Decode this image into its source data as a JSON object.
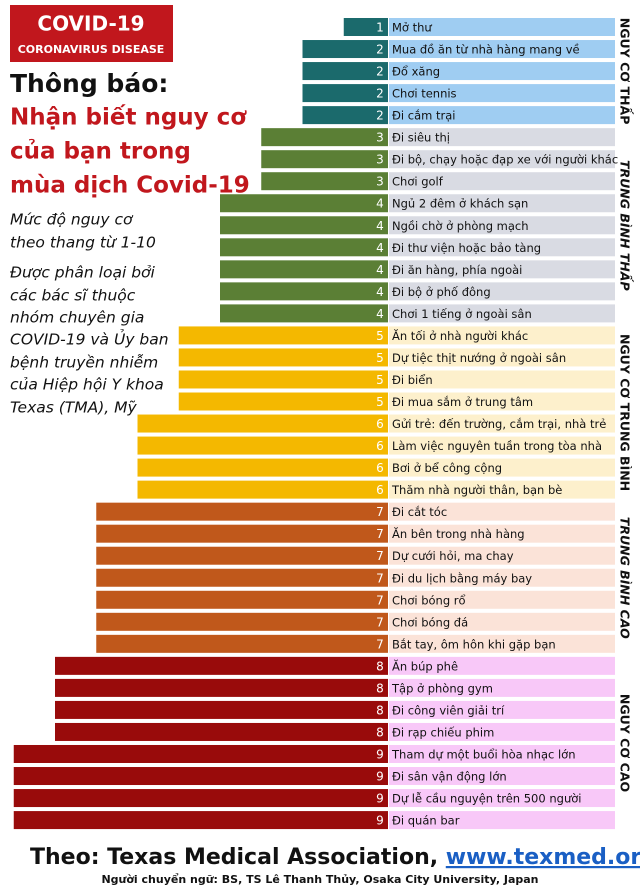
{
  "chart_data": {
    "type": "bar",
    "badge": [
      "COVID-19",
      "CORONAVIRUS DISEASE"
    ],
    "title": "Thông báo:",
    "subtitle": [
      "Nhận biết nguy cơ",
      "của bạn trong",
      "mùa dịch Covid-19"
    ],
    "annotations": [
      "Mức độ nguy cơ",
      "theo thang từ 1-10",
      "Được phân loại bởi",
      "các bác sĩ thuộc",
      "nhóm chuyên gia",
      "COVID-19 và Ủy ban",
      "bệnh truyền nhiễm",
      "của Hiệp hội Y khoa",
      "Texas (TMA), Mỹ"
    ],
    "series": [
      {
        "name": "NGUY CƠ THẤP",
        "color": "#1b6a6c",
        "background": "#9fcdf2",
        "categories": [
          "Mở thư",
          "Mua đồ ăn từ nhà hàng mang về",
          "Đổ xăng",
          "Chơi tennis",
          "Đi cắm trại"
        ],
        "values": [
          1,
          2,
          2,
          2,
          2
        ]
      },
      {
        "name": "TRUNG BÌNH THẤP",
        "color": "#5b7f35",
        "background": "#d9dbe3",
        "categories": [
          "Đi siêu thị",
          "Đi bộ, chạy hoặc đạp xe với người khác",
          "Chơi golf",
          "Ngủ 2 đêm ở khách sạn",
          "Ngồi chờ ở phòng mạch",
          "Đi thư viện hoặc bảo tàng",
          "Đi ăn hàng, phía ngoài",
          "Đi bộ ở phố đông",
          "Chơi 1 tiếng ở ngoài sân"
        ],
        "values": [
          3,
          3,
          3,
          4,
          4,
          4,
          4,
          4,
          4
        ]
      },
      {
        "name": "NGUY CƠ TRUNG BÌNH",
        "color": "#f4b800",
        "background": "#fdf0cc",
        "categories": [
          "Ăn tối ở nhà người khác",
          "Dự tiệc thịt nướng ở ngoài sân",
          "Đi biển",
          "Đi mua sắm ở trung tâm",
          "Gửi trẻ: đến trường, cắm trại, nhà trẻ",
          "Làm việc nguyên tuần trong tòa nhà",
          "Bơi ở bể công cộng",
          "Thăm nhà người thân, bạn bè"
        ],
        "values": [
          5,
          5,
          5,
          5,
          6,
          6,
          6,
          6
        ]
      },
      {
        "name": "TRUNG BÌNH CAO",
        "color": "#c0581b",
        "background": "#fbe3d8",
        "categories": [
          "Đi cắt tóc",
          "Ăn bên trong nhà hàng",
          "Dự cưới hỏi, ma chay",
          "Đi du lịch bằng máy bay",
          "Chơi bóng rổ",
          "Chơi bóng đá",
          "Bắt tay, ôm hôn khi gặp bạn"
        ],
        "values": [
          7,
          7,
          7,
          7,
          7,
          7,
          7
        ]
      },
      {
        "name": "NGUY CƠ CAO",
        "color": "#990b0b",
        "background": "#f8c8f8",
        "categories": [
          "Ăn búp phê",
          "Tập ở phòng gym",
          "Đi công viên giải trí",
          "Đi rạp chiếu phim",
          "Tham dự một buổi hòa nhạc lớn",
          "Đi sân vận động lớn",
          "Dự lễ cầu nguyện trên 500 người",
          "Đi quán bar"
        ],
        "values": [
          8,
          8,
          8,
          8,
          9,
          9,
          9,
          9
        ]
      }
    ],
    "source": "Theo: Texas Medical Association,",
    "source_url": "www.texmed.org",
    "credit": "Người chuyển ngữ: BS, TS Lê Thanh Thủy, Osaka City University, Japan"
  }
}
